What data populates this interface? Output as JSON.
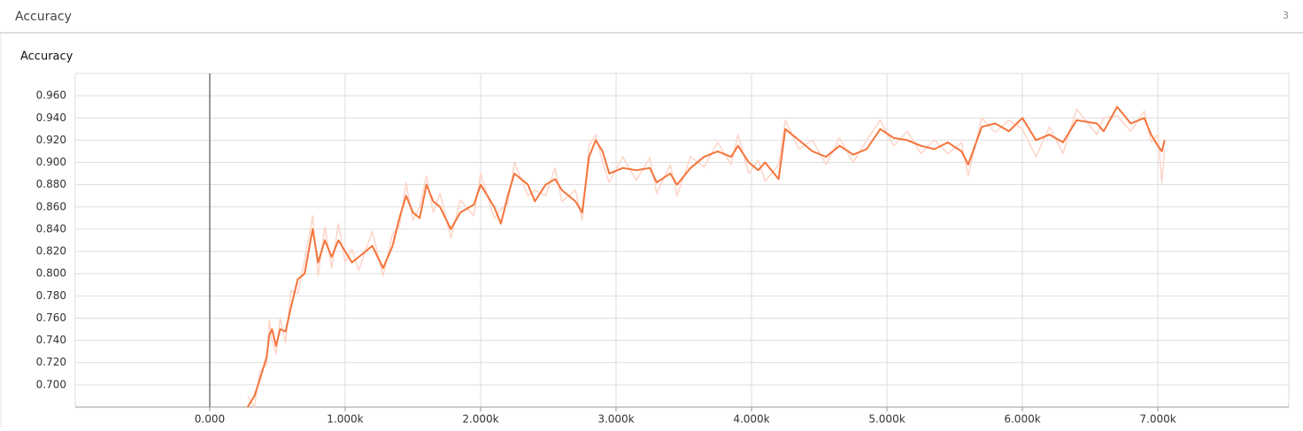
{
  "header": {
    "title": "Accuracy",
    "count": "3"
  },
  "chart_data": {
    "type": "line",
    "title": "Accuracy",
    "x": [
      280,
      330,
      370,
      420,
      440,
      460,
      490,
      520,
      560,
      600,
      650,
      700,
      760,
      800,
      850,
      900,
      950,
      1000,
      1050,
      1100,
      1200,
      1280,
      1350,
      1400,
      1450,
      1500,
      1550,
      1600,
      1650,
      1700,
      1780,
      1850,
      1950,
      2000,
      2100,
      2150,
      2200,
      2250,
      2350,
      2400,
      2480,
      2550,
      2600,
      2700,
      2750,
      2800,
      2850,
      2900,
      2950,
      3050,
      3150,
      3250,
      3300,
      3400,
      3450,
      3550,
      3650,
      3750,
      3850,
      3900,
      3980,
      4050,
      4100,
      4200,
      4250,
      4350,
      4450,
      4550,
      4650,
      4750,
      4850,
      4950,
      5050,
      5150,
      5250,
      5350,
      5450,
      5550,
      5600,
      5700,
      5800,
      5900,
      6000,
      6100,
      6200,
      6300,
      6400,
      6550,
      6600,
      6700,
      6800,
      6900,
      6950,
      7000,
      7030,
      7050
    ],
    "series": [
      {
        "color": "#fdd5c8",
        "values": [
          0.69,
          0.68,
          0.712,
          0.718,
          0.758,
          0.74,
          0.728,
          0.76,
          0.738,
          0.785,
          0.782,
          0.812,
          0.852,
          0.798,
          0.842,
          0.805,
          0.845,
          0.81,
          0.822,
          0.803,
          0.838,
          0.798,
          0.836,
          0.842,
          0.882,
          0.848,
          0.86,
          0.888,
          0.855,
          0.872,
          0.832,
          0.866,
          0.852,
          0.89,
          0.85,
          0.858,
          0.862,
          0.9,
          0.87,
          0.875,
          0.87,
          0.895,
          0.865,
          0.875,
          0.848,
          0.915,
          0.925,
          0.9,
          0.882,
          0.905,
          0.884,
          0.904,
          0.872,
          0.898,
          0.87,
          0.905,
          0.896,
          0.918,
          0.898,
          0.925,
          0.89,
          0.902,
          0.883,
          0.898,
          0.938,
          0.912,
          0.92,
          0.898,
          0.922,
          0.9,
          0.92,
          0.938,
          0.915,
          0.928,
          0.908,
          0.92,
          0.908,
          0.918,
          0.888,
          0.94,
          0.927,
          0.938,
          0.93,
          0.905,
          0.932,
          0.908,
          0.948,
          0.925,
          0.94,
          0.942,
          0.928,
          0.946,
          0.918,
          0.925,
          0.882,
          0.912
        ]
      },
      {
        "color": "#f4743b",
        "values": [
          0.68,
          0.69,
          0.705,
          0.725,
          0.745,
          0.75,
          0.735,
          0.75,
          0.748,
          0.77,
          0.795,
          0.8,
          0.84,
          0.81,
          0.83,
          0.815,
          0.83,
          0.82,
          0.81,
          0.815,
          0.825,
          0.805,
          0.825,
          0.85,
          0.87,
          0.855,
          0.85,
          0.88,
          0.865,
          0.86,
          0.84,
          0.855,
          0.862,
          0.88,
          0.86,
          0.845,
          0.87,
          0.89,
          0.88,
          0.865,
          0.88,
          0.885,
          0.875,
          0.865,
          0.855,
          0.905,
          0.92,
          0.91,
          0.89,
          0.895,
          0.893,
          0.895,
          0.882,
          0.89,
          0.88,
          0.895,
          0.905,
          0.91,
          0.905,
          0.915,
          0.9,
          0.893,
          0.9,
          0.885,
          0.93,
          0.92,
          0.91,
          0.905,
          0.915,
          0.907,
          0.912,
          0.93,
          0.922,
          0.92,
          0.915,
          0.912,
          0.918,
          0.91,
          0.898,
          0.932,
          0.935,
          0.928,
          0.94,
          0.92,
          0.925,
          0.918,
          0.938,
          0.935,
          0.928,
          0.95,
          0.935,
          0.94,
          0.925,
          0.915,
          0.91,
          0.92
        ]
      }
    ],
    "xlim": [
      -993,
      7967
    ],
    "ylim": [
      0.68,
      0.98
    ],
    "xticks": [
      {
        "value": 0,
        "label": "0.000"
      },
      {
        "value": 1000,
        "label": "1.000k"
      },
      {
        "value": 2000,
        "label": "2.000k"
      },
      {
        "value": 3000,
        "label": "3.000k"
      },
      {
        "value": 4000,
        "label": "4.000k"
      },
      {
        "value": 5000,
        "label": "5.000k"
      },
      {
        "value": 6000,
        "label": "6.000k"
      },
      {
        "value": 7000,
        "label": "7.000k"
      }
    ],
    "yticks": [
      {
        "value": 0.7,
        "label": "0.700"
      },
      {
        "value": 0.72,
        "label": "0.720"
      },
      {
        "value": 0.74,
        "label": "0.740"
      },
      {
        "value": 0.76,
        "label": "0.760"
      },
      {
        "value": 0.78,
        "label": "0.780"
      },
      {
        "value": 0.8,
        "label": "0.800"
      },
      {
        "value": 0.82,
        "label": "0.820"
      },
      {
        "value": 0.84,
        "label": "0.840"
      },
      {
        "value": 0.86,
        "label": "0.860"
      },
      {
        "value": 0.88,
        "label": "0.880"
      },
      {
        "value": 0.9,
        "label": "0.900"
      },
      {
        "value": 0.92,
        "label": "0.920"
      },
      {
        "value": 0.94,
        "label": "0.940"
      },
      {
        "value": 0.96,
        "label": "0.960"
      }
    ],
    "grid": true
  }
}
